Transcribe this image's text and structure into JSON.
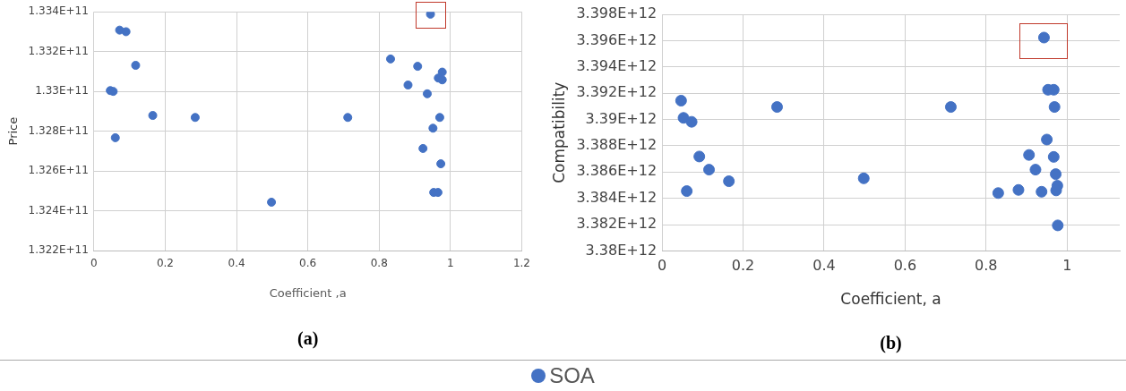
{
  "chart_data": [
    {
      "type": "scatter",
      "xlabel": "Coefficient ,a",
      "ylabel": "Price",
      "annotations": [
        "(a)"
      ],
      "xlim": [
        0,
        1.2
      ],
      "xticks": [
        0,
        0.2,
        0.4,
        0.6,
        0.8,
        1,
        1.2
      ],
      "ylim": [
        132200000000,
        133400000000
      ],
      "yticks": [
        {
          "value": 132200000000,
          "label": "1.322E+11"
        },
        {
          "value": 132400000000,
          "label": "1.324E+11"
        },
        {
          "value": 132600000000,
          "label": "1.326E+11"
        },
        {
          "value": 132800000000,
          "label": "1.328E+11"
        },
        {
          "value": 133000000000,
          "label": "1.33E+11"
        },
        {
          "value": 133200000000,
          "label": "1.332E+11"
        },
        {
          "value": 133400000000,
          "label": "1.334E+11"
        }
      ],
      "grid": true,
      "marker": "circle",
      "legend": false,
      "series": [
        {
          "color": "#4472c4",
          "x": [
            0.072,
            0.09,
            0.117,
            0.046,
            0.054,
            0.165,
            0.284,
            0.06,
            0.498,
            0.944,
            0.832,
            0.908,
            0.977,
            0.966,
            0.977,
            0.881,
            0.935,
            0.712,
            0.97,
            0.951,
            0.923,
            0.973,
            0.953,
            0.965
          ],
          "values": [
            133308000000,
            133300000000,
            133131000000,
            133004000000,
            133000000000,
            132879000000,
            132869000000,
            132767000000,
            132443000000,
            133388000000,
            133163000000,
            133126000000,
            133097000000,
            133067000000,
            133058000000,
            133032000000,
            132988000000,
            132869000000,
            132869000000,
            132815000000,
            132713000000,
            132636000000,
            132492000000,
            132492000000
          ]
        }
      ]
    },
    {
      "type": "scatter",
      "xlabel": "Coefficient, a",
      "ylabel": "Compatibility",
      "annotations": [
        "(b)"
      ],
      "xlim": [
        0,
        1.13
      ],
      "xticks": [
        0,
        0.2,
        0.4,
        0.6,
        0.8,
        1
      ],
      "ylim": [
        3380000000000,
        3398000000000
      ],
      "yticks": [
        {
          "value": 3380000000000,
          "label": "3.38E+12"
        },
        {
          "value": 3382000000000,
          "label": "3.382E+12"
        },
        {
          "value": 3384000000000,
          "label": "3.384E+12"
        },
        {
          "value": 3386000000000,
          "label": "3.386E+12"
        },
        {
          "value": 3388000000000,
          "label": "3.388E+12"
        },
        {
          "value": 3390000000000,
          "label": "3.39E+12"
        },
        {
          "value": 3392000000000,
          "label": "3.392E+12"
        },
        {
          "value": 3394000000000,
          "label": "3.394E+12"
        },
        {
          "value": 3396000000000,
          "label": "3.396E+12"
        },
        {
          "value": 3398000000000,
          "label": "3.398E+12"
        }
      ],
      "grid": true,
      "marker": "circle",
      "legend": "bottom",
      "series": [
        {
          "name": "SOA",
          "color": "#4472c4",
          "x": [
            0.047,
            0.053,
            0.073,
            0.092,
            0.116,
            0.165,
            0.061,
            0.284,
            0.498,
            0.713,
            0.943,
            0.953,
            0.967,
            0.969,
            0.95,
            0.906,
            0.967,
            0.922,
            0.972,
            0.976,
            0.973,
            0.83,
            0.88,
            0.937,
            0.977
          ],
          "values": [
            3391430000000,
            3390120000000,
            3389820000000,
            3387180000000,
            3386180000000,
            3385300000000,
            3384550000000,
            3390950000000,
            3385520000000,
            3390950000000,
            3396230000000,
            3392260000000,
            3392260000000,
            3390950000000,
            3388470000000,
            3387300000000,
            3387150000000,
            3386180000000,
            3385840000000,
            3384960000000,
            3384600000000,
            3384400000000,
            3384640000000,
            3384500000000,
            3381940000000
          ]
        }
      ]
    }
  ]
}
